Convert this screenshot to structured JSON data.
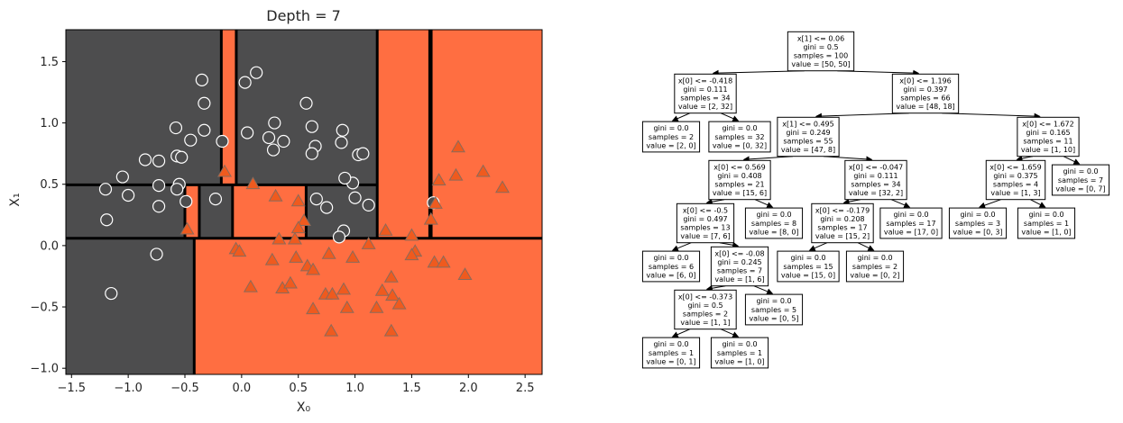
{
  "colors": {
    "class0": "#4d4d4e",
    "class1": "#ff6e41",
    "circle_fill": "#4d4d4e",
    "circle_edge": "#ffffff",
    "triangle_fill": "#ef5a1e",
    "triangle_edge": "#8a6a5a",
    "boundary": "#000000"
  },
  "chart_data": [
    {
      "type": "scatter",
      "title": "Depth = 7",
      "xlabel": "X₀",
      "ylabel": "X₁",
      "xlim": [
        -1.55,
        2.65
      ],
      "ylim": [
        -1.05,
        1.76
      ],
      "xticks": [
        -1.5,
        -1.0,
        -0.5,
        0.0,
        0.5,
        1.0,
        1.5,
        2.0,
        2.5
      ],
      "xtick_labels": [
        "−1.5",
        "−1.0",
        "−0.5",
        "0.0",
        "0.5",
        "1.0",
        "1.5",
        "2.0",
        "2.5"
      ],
      "yticks": [
        -1.0,
        -0.5,
        0.0,
        0.5,
        1.0,
        1.5
      ],
      "ytick_labels": [
        "−1.0",
        "−0.5",
        "0.0",
        "0.5",
        "1.0",
        "1.5"
      ],
      "regions": [
        {
          "x": [
            -1.55,
            -0.418
          ],
          "y": [
            -1.05,
            0.06
          ],
          "class": 0
        },
        {
          "x": [
            -0.418,
            2.65
          ],
          "y": [
            -1.05,
            0.06
          ],
          "class": 1
        },
        {
          "x": [
            -1.55,
            -0.5
          ],
          "y": [
            0.06,
            0.495
          ],
          "class": 0
        },
        {
          "x": [
            -0.5,
            -0.373
          ],
          "y": [
            0.06,
            0.495
          ],
          "class": 1
        },
        {
          "x": [
            -0.373,
            -0.08
          ],
          "y": [
            0.06,
            0.495
          ],
          "class": 0
        },
        {
          "x": [
            -0.08,
            0.569
          ],
          "y": [
            0.06,
            0.495
          ],
          "class": 1
        },
        {
          "x": [
            0.569,
            1.196
          ],
          "y": [
            0.06,
            0.495
          ],
          "class": 0
        },
        {
          "x": [
            -1.55,
            -0.179
          ],
          "y": [
            0.495,
            1.76
          ],
          "class": 0
        },
        {
          "x": [
            -0.179,
            -0.047
          ],
          "y": [
            0.495,
            1.76
          ],
          "class": 1
        },
        {
          "x": [
            -0.047,
            1.196
          ],
          "y": [
            0.495,
            1.76
          ],
          "class": 0
        },
        {
          "x": [
            1.196,
            1.659
          ],
          "y": [
            0.06,
            1.76
          ],
          "class": 1
        },
        {
          "x": [
            1.659,
            1.672
          ],
          "y": [
            0.06,
            1.76
          ],
          "class": 0
        },
        {
          "x": [
            1.672,
            2.65
          ],
          "y": [
            0.06,
            1.76
          ],
          "class": 1
        }
      ],
      "boundaries": [
        {
          "x": [
            -1.55,
            2.65
          ],
          "y": [
            0.06,
            0.06
          ]
        },
        {
          "x": [
            -0.418,
            -0.418
          ],
          "y": [
            -1.05,
            0.06
          ]
        },
        {
          "x": [
            1.196,
            1.196
          ],
          "y": [
            0.06,
            1.76
          ]
        },
        {
          "x": [
            1.672,
            1.672
          ],
          "y": [
            0.06,
            1.76
          ]
        },
        {
          "x": [
            1.659,
            1.659
          ],
          "y": [
            0.06,
            1.76
          ]
        },
        {
          "x": [
            -1.55,
            1.196
          ],
          "y": [
            0.495,
            0.495
          ]
        },
        {
          "x": [
            0.569,
            0.569
          ],
          "y": [
            0.06,
            0.495
          ]
        },
        {
          "x": [
            -0.5,
            -0.5
          ],
          "y": [
            0.06,
            0.495
          ]
        },
        {
          "x": [
            -0.373,
            -0.373
          ],
          "y": [
            0.06,
            0.495
          ]
        },
        {
          "x": [
            -0.08,
            -0.08
          ],
          "y": [
            0.06,
            0.495
          ]
        },
        {
          "x": [
            -0.179,
            -0.179
          ],
          "y": [
            0.495,
            1.76
          ]
        },
        {
          "x": [
            -0.047,
            -0.047
          ],
          "y": [
            0.495,
            1.76
          ]
        }
      ],
      "class0_points": [
        [
          -0.35,
          1.35
        ],
        [
          -0.33,
          1.16
        ],
        [
          -0.33,
          0.94
        ],
        [
          -0.58,
          0.96
        ],
        [
          -0.45,
          0.86
        ],
        [
          -0.57,
          0.73
        ],
        [
          -0.53,
          0.72
        ],
        [
          -0.55,
          0.5
        ],
        [
          -0.57,
          0.46
        ],
        [
          -0.49,
          0.36
        ],
        [
          -0.73,
          0.69
        ],
        [
          -0.85,
          0.7
        ],
        [
          -0.73,
          0.49
        ],
        [
          -0.73,
          0.32
        ],
        [
          -1.0,
          0.41
        ],
        [
          -1.05,
          0.56
        ],
        [
          -1.2,
          0.46
        ],
        [
          -1.19,
          0.21
        ],
        [
          -0.75,
          -0.07
        ],
        [
          -1.15,
          -0.39
        ],
        [
          -0.17,
          0.85
        ],
        [
          -0.23,
          0.38
        ],
        [
          0.03,
          1.33
        ],
        [
          0.13,
          1.41
        ],
        [
          0.05,
          0.92
        ],
        [
          0.24,
          0.88
        ],
        [
          0.28,
          0.78
        ],
        [
          0.29,
          1.0
        ],
        [
          0.37,
          0.85
        ],
        [
          0.57,
          1.16
        ],
        [
          0.62,
          0.97
        ],
        [
          0.65,
          0.81
        ],
        [
          0.62,
          0.75
        ],
        [
          0.66,
          0.38
        ],
        [
          0.75,
          0.31
        ],
        [
          0.89,
          0.94
        ],
        [
          0.88,
          0.84
        ],
        [
          0.98,
          0.51
        ],
        [
          0.91,
          0.55
        ],
        [
          1.03,
          0.74
        ],
        [
          1.07,
          0.75
        ],
        [
          1.0,
          0.39
        ],
        [
          1.12,
          0.33
        ],
        [
          0.9,
          0.12
        ],
        [
          0.86,
          0.07
        ],
        [
          1.69,
          0.35
        ]
      ],
      "class1_points": [
        [
          -0.15,
          0.6
        ],
        [
          0.1,
          0.5
        ],
        [
          0.3,
          0.4
        ],
        [
          -0.48,
          0.13
        ],
        [
          0.5,
          0.36
        ],
        [
          0.55,
          0.2
        ],
        [
          0.5,
          0.14
        ],
        [
          -0.05,
          -0.03
        ],
        [
          -0.02,
          -0.05
        ],
        [
          0.33,
          0.05
        ],
        [
          0.47,
          0.05
        ],
        [
          0.48,
          -0.1
        ],
        [
          0.27,
          -0.12
        ],
        [
          0.58,
          -0.17
        ],
        [
          0.63,
          -0.2
        ],
        [
          0.77,
          -0.07
        ],
        [
          0.98,
          -0.1
        ],
        [
          1.12,
          0.01
        ],
        [
          1.27,
          0.12
        ],
        [
          1.5,
          0.08
        ],
        [
          1.53,
          -0.05
        ],
        [
          1.5,
          -0.08
        ],
        [
          1.67,
          0.21
        ],
        [
          1.71,
          0.34
        ],
        [
          1.74,
          0.53
        ],
        [
          1.7,
          -0.14
        ],
        [
          1.78,
          -0.14
        ],
        [
          1.89,
          0.57
        ],
        [
          1.91,
          0.8
        ],
        [
          2.13,
          0.6
        ],
        [
          2.3,
          0.47
        ],
        [
          1.97,
          -0.24
        ],
        [
          0.08,
          -0.34
        ],
        [
          0.36,
          -0.35
        ],
        [
          0.43,
          -0.31
        ],
        [
          0.63,
          -0.52
        ],
        [
          0.74,
          -0.4
        ],
        [
          0.8,
          -0.4
        ],
        [
          0.9,
          -0.36
        ],
        [
          0.93,
          -0.51
        ],
        [
          0.79,
          -0.7
        ],
        [
          1.19,
          -0.51
        ],
        [
          1.24,
          -0.37
        ],
        [
          1.32,
          -0.26
        ],
        [
          1.33,
          -0.41
        ],
        [
          1.39,
          -0.48
        ],
        [
          1.32,
          -0.7
        ]
      ]
    },
    {
      "type": "tree",
      "nodes": [
        {
          "id": "n0",
          "lines": [
            "x[1] <= 0.06",
            "gini = 0.5",
            "samples = 100",
            "value = [50, 50]"
          ]
        },
        {
          "id": "n1",
          "lines": [
            "x[0] <= -0.418",
            "gini = 0.111",
            "samples = 34",
            "value = [2, 32]"
          ]
        },
        {
          "id": "n2",
          "lines": [
            "x[0] <= 1.196",
            "gini = 0.397",
            "samples = 66",
            "value = [48, 18]"
          ]
        },
        {
          "id": "n3",
          "lines": [
            "gini = 0.0",
            "samples = 2",
            "value = [2, 0]"
          ]
        },
        {
          "id": "n4",
          "lines": [
            "gini = 0.0",
            "samples = 32",
            "value = [0, 32]"
          ]
        },
        {
          "id": "n5",
          "lines": [
            "x[1] <= 0.495",
            "gini = 0.249",
            "samples = 55",
            "value = [47, 8]"
          ]
        },
        {
          "id": "n6",
          "lines": [
            "x[0] <= 1.672",
            "gini = 0.165",
            "samples = 11",
            "value = [1, 10]"
          ]
        },
        {
          "id": "n7",
          "lines": [
            "x[0] <= 0.569",
            "gini = 0.408",
            "samples = 21",
            "value = [15, 6]"
          ]
        },
        {
          "id": "n8",
          "lines": [
            "x[0] <= -0.047",
            "gini = 0.111",
            "samples = 34",
            "value = [32, 2]"
          ]
        },
        {
          "id": "n9",
          "lines": [
            "x[0] <= 1.659",
            "gini = 0.375",
            "samples = 4",
            "value = [1, 3]"
          ]
        },
        {
          "id": "n10",
          "lines": [
            "gini = 0.0",
            "samples = 7",
            "value = [0, 7]"
          ]
        },
        {
          "id": "n11",
          "lines": [
            "x[0] <= -0.5",
            "gini = 0.497",
            "samples = 13",
            "value = [7, 6]"
          ]
        },
        {
          "id": "n12",
          "lines": [
            "gini = 0.0",
            "samples = 8",
            "value = [8, 0]"
          ]
        },
        {
          "id": "n13",
          "lines": [
            "x[0] <= -0.179",
            "gini = 0.208",
            "samples = 17",
            "value = [15, 2]"
          ]
        },
        {
          "id": "n14",
          "lines": [
            "gini = 0.0",
            "samples = 17",
            "value = [17, 0]"
          ]
        },
        {
          "id": "n15",
          "lines": [
            "gini = 0.0",
            "samples = 3",
            "value = [0, 3]"
          ]
        },
        {
          "id": "n16",
          "lines": [
            "gini = 0.0",
            "samples = 1",
            "value = [1, 0]"
          ]
        },
        {
          "id": "n17",
          "lines": [
            "gini = 0.0",
            "samples = 6",
            "value = [6, 0]"
          ]
        },
        {
          "id": "n18",
          "lines": [
            "x[0] <= -0.08",
            "gini = 0.245",
            "samples = 7",
            "value = [1, 6]"
          ]
        },
        {
          "id": "n19",
          "lines": [
            "gini = 0.0",
            "samples = 15",
            "value = [15, 0]"
          ]
        },
        {
          "id": "n20",
          "lines": [
            "gini = 0.0",
            "samples = 2",
            "value = [0, 2]"
          ]
        },
        {
          "id": "n21",
          "lines": [
            "x[0] <= -0.373",
            "gini = 0.5",
            "samples = 2",
            "value = [1, 1]"
          ]
        },
        {
          "id": "n22",
          "lines": [
            "gini = 0.0",
            "samples = 5",
            "value = [0, 5]"
          ]
        },
        {
          "id": "n23",
          "lines": [
            "gini = 0.0",
            "samples = 1",
            "value = [0, 1]"
          ]
        },
        {
          "id": "n24",
          "lines": [
            "gini = 0.0",
            "samples = 1",
            "value = [1, 0]"
          ]
        }
      ],
      "edges": [
        [
          "n0",
          "n1"
        ],
        [
          "n0",
          "n2"
        ],
        [
          "n1",
          "n3"
        ],
        [
          "n1",
          "n4"
        ],
        [
          "n2",
          "n5"
        ],
        [
          "n2",
          "n6"
        ],
        [
          "n5",
          "n7"
        ],
        [
          "n5",
          "n8"
        ],
        [
          "n6",
          "n9"
        ],
        [
          "n6",
          "n10"
        ],
        [
          "n7",
          "n11"
        ],
        [
          "n7",
          "n12"
        ],
        [
          "n8",
          "n13"
        ],
        [
          "n8",
          "n14"
        ],
        [
          "n9",
          "n15"
        ],
        [
          "n9",
          "n16"
        ],
        [
          "n11",
          "n17"
        ],
        [
          "n11",
          "n18"
        ],
        [
          "n13",
          "n19"
        ],
        [
          "n13",
          "n20"
        ],
        [
          "n18",
          "n21"
        ],
        [
          "n18",
          "n22"
        ],
        [
          "n21",
          "n23"
        ],
        [
          "n21",
          "n24"
        ]
      ]
    }
  ]
}
